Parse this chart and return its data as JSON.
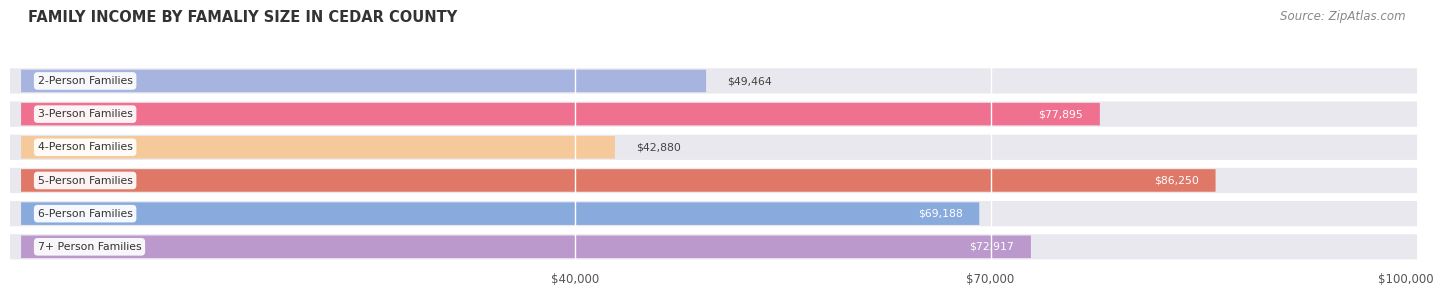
{
  "title": "FAMILY INCOME BY FAMALIY SIZE IN CEDAR COUNTY",
  "source": "Source: ZipAtlas.com",
  "categories": [
    "2-Person Families",
    "3-Person Families",
    "4-Person Families",
    "5-Person Families",
    "6-Person Families",
    "7+ Person Families"
  ],
  "values": [
    49464,
    77895,
    42880,
    86250,
    69188,
    72917
  ],
  "bar_colors": [
    "#a8b4e0",
    "#f07090",
    "#f5c99a",
    "#e07868",
    "#88aadd",
    "#bb99cc"
  ],
  "xlim": [
    0,
    100000
  ],
  "xticks": [
    40000,
    70000,
    100000
  ],
  "xticklabels": [
    "$40,000",
    "$70,000",
    "$100,000"
  ],
  "background_color": "#ffffff",
  "bar_background": "#e8e8ee",
  "title_fontsize": 10.5,
  "source_fontsize": 8.5,
  "label_inside_threshold": 60000
}
